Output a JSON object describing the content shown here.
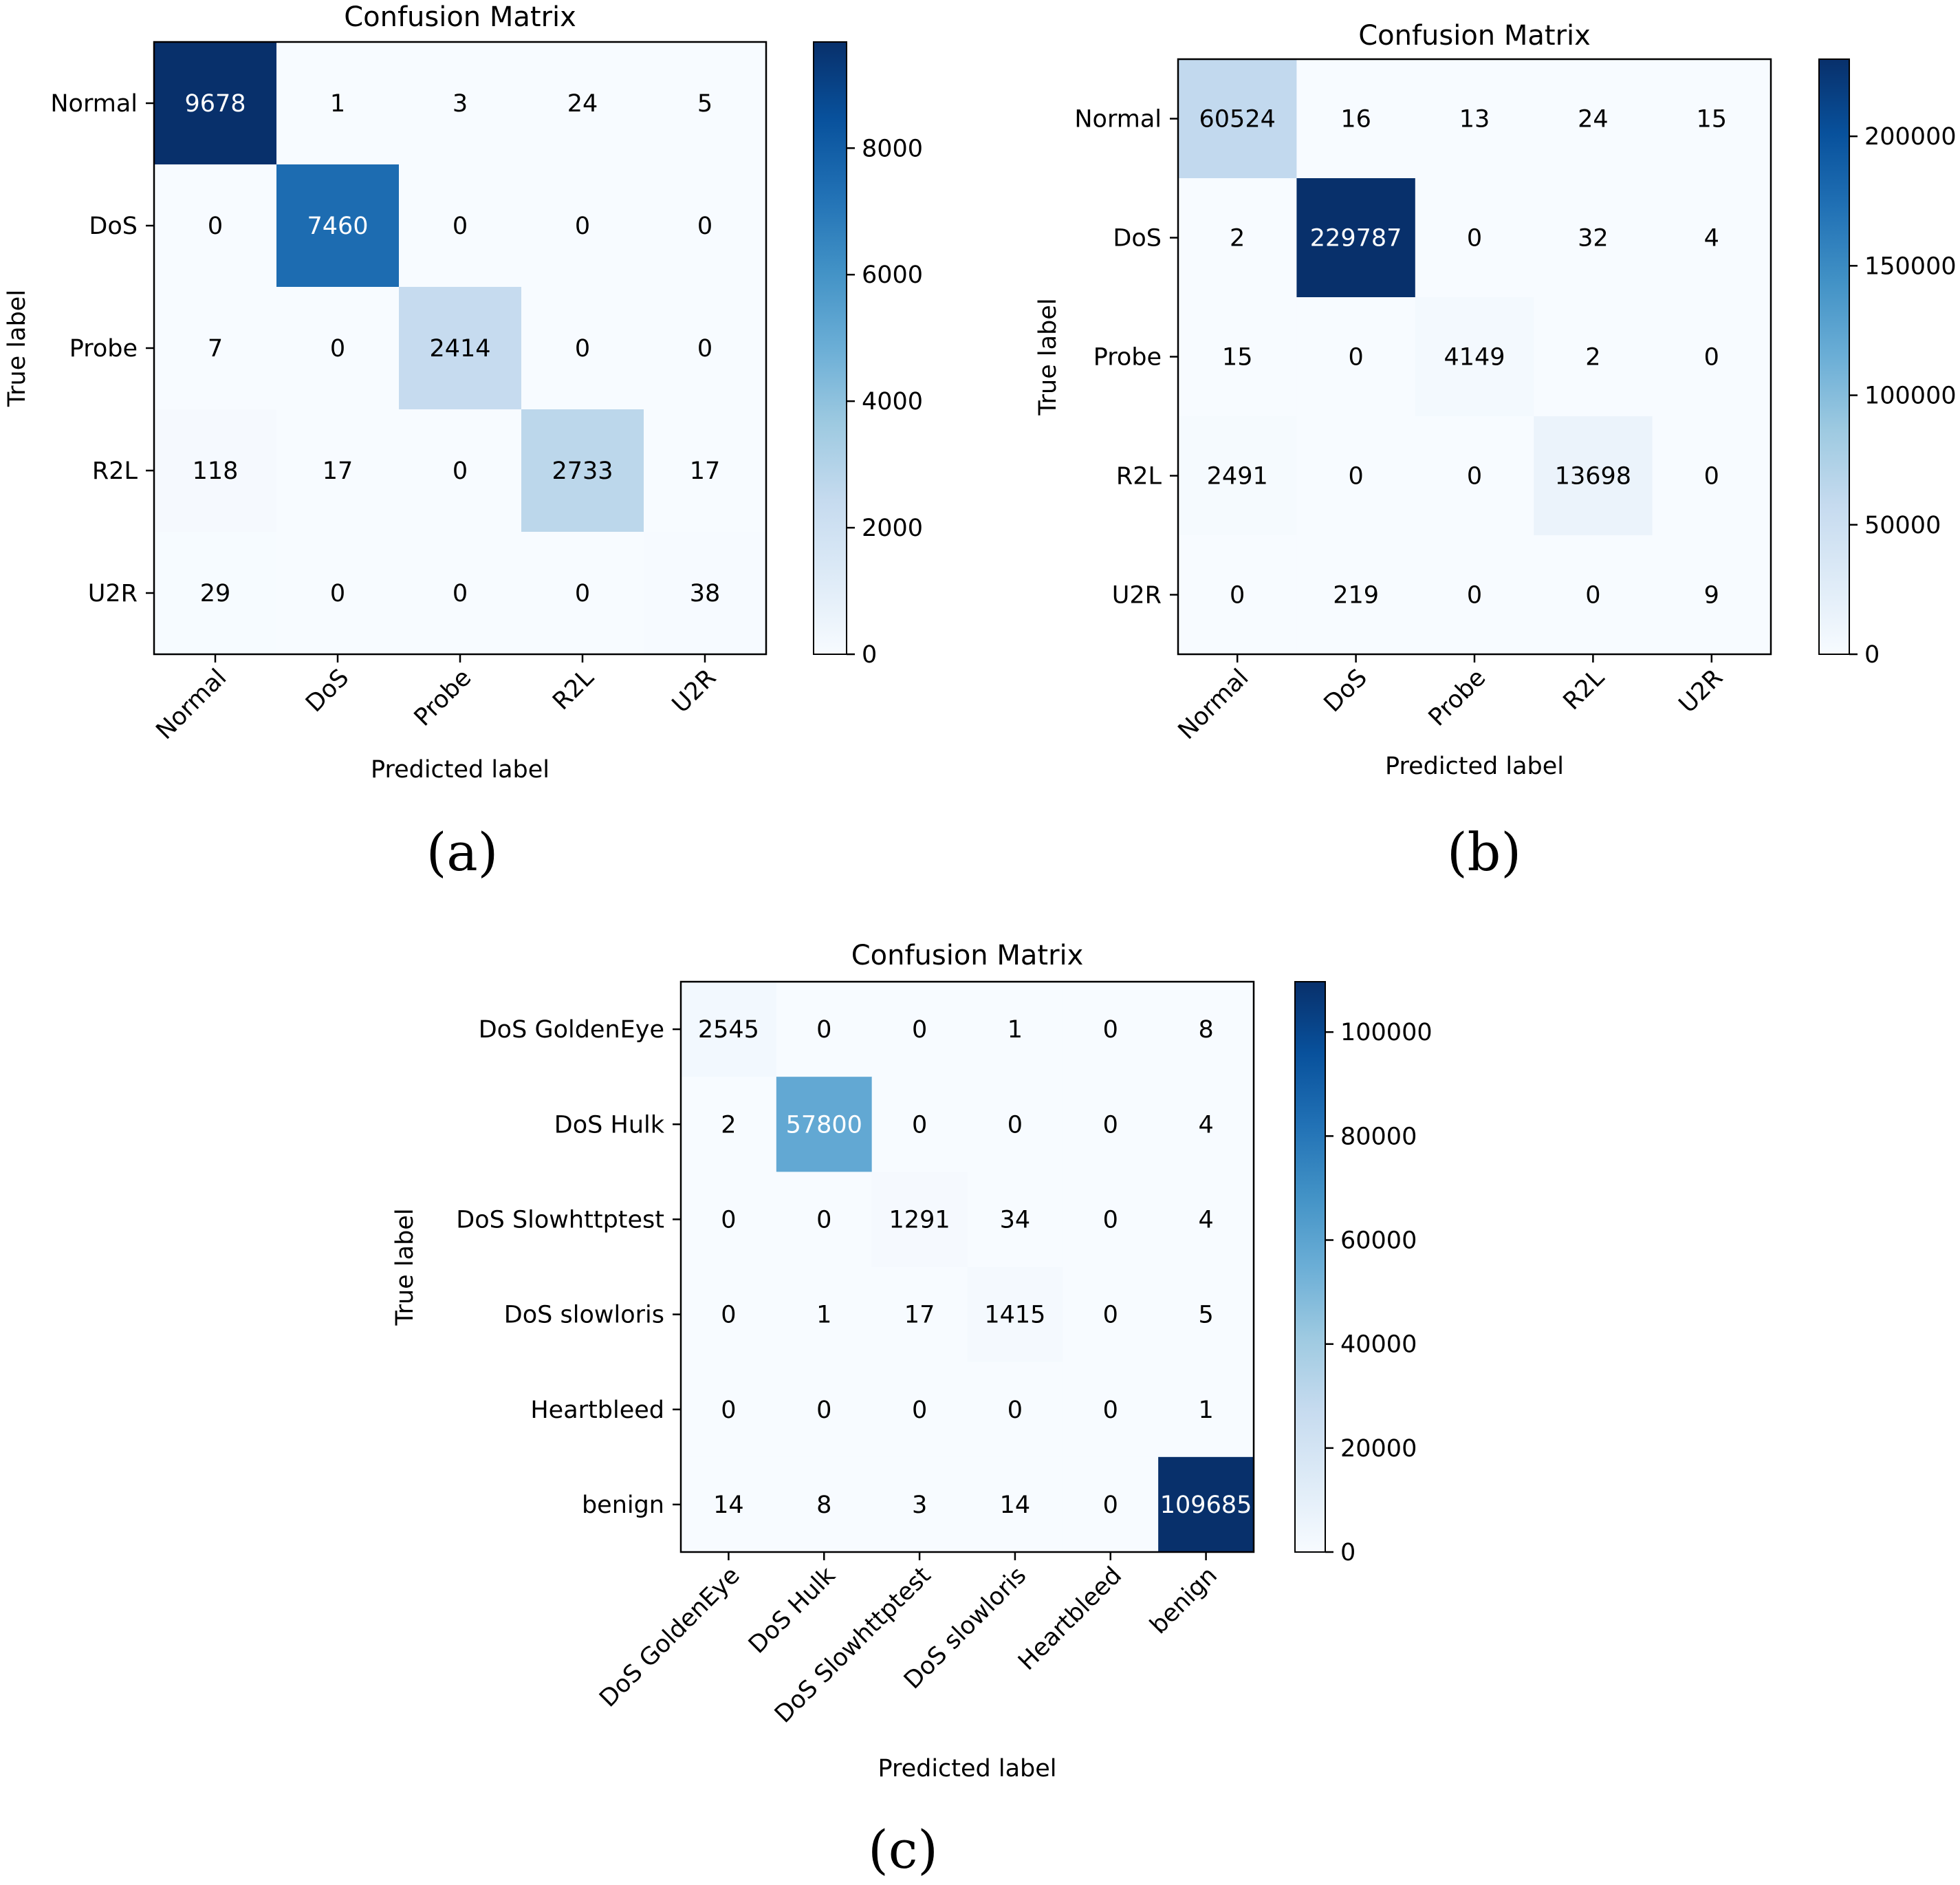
{
  "figure": {
    "panel_labels": [
      "(a)",
      "(b)",
      "(c)"
    ]
  },
  "colors": {
    "colormap": [
      "#f7fbff",
      "#deebf7",
      "#c6dbef",
      "#9ecae1",
      "#6baed6",
      "#4292c6",
      "#2171b5",
      "#08519c",
      "#08306b"
    ],
    "text_dark": "#000000",
    "text_light": "#ffffff"
  },
  "chart_data": [
    {
      "type": "heatmap",
      "title": "Confusion Matrix",
      "xlabel": "Predicted label",
      "ylabel": "True label",
      "row_labels": [
        "Normal",
        "DoS",
        "Probe",
        "R2L",
        "U2R"
      ],
      "col_labels": [
        "Normal",
        "DoS",
        "Probe",
        "R2L",
        "U2R"
      ],
      "values": [
        [
          9678,
          1,
          3,
          24,
          5
        ],
        [
          0,
          7460,
          0,
          0,
          0
        ],
        [
          7,
          0,
          2414,
          0,
          0
        ],
        [
          118,
          17,
          0,
          2733,
          17
        ],
        [
          29,
          0,
          0,
          0,
          38
        ]
      ],
      "vmin": 0,
      "vmax": 9678,
      "colorbar_ticks": [
        0,
        2000,
        4000,
        6000,
        8000
      ]
    },
    {
      "type": "heatmap",
      "title": "Confusion Matrix",
      "xlabel": "Predicted label",
      "ylabel": "True label",
      "row_labels": [
        "Normal",
        "DoS",
        "Probe",
        "R2L",
        "U2R"
      ],
      "col_labels": [
        "Normal",
        "DoS",
        "Probe",
        "R2L",
        "U2R"
      ],
      "values": [
        [
          60524,
          16,
          13,
          24,
          15
        ],
        [
          2,
          229787,
          0,
          32,
          4
        ],
        [
          15,
          0,
          4149,
          2,
          0
        ],
        [
          2491,
          0,
          0,
          13698,
          0
        ],
        [
          0,
          219,
          0,
          0,
          9
        ]
      ],
      "vmin": 0,
      "vmax": 229787,
      "colorbar_ticks": [
        0,
        50000,
        100000,
        150000,
        200000
      ]
    },
    {
      "type": "heatmap",
      "title": "Confusion Matrix",
      "xlabel": "Predicted label",
      "ylabel": "True label",
      "row_labels": [
        "DoS GoldenEye",
        "DoS Hulk",
        "DoS Slowhttptest",
        "DoS slowloris",
        "Heartbleed",
        "benign"
      ],
      "col_labels": [
        "DoS GoldenEye",
        "DoS Hulk",
        "DoS Slowhttptest",
        "DoS slowloris",
        "Heartbleed",
        "benign"
      ],
      "values": [
        [
          2545,
          0,
          0,
          1,
          0,
          8
        ],
        [
          2,
          57800,
          0,
          0,
          0,
          4
        ],
        [
          0,
          0,
          1291,
          34,
          0,
          4
        ],
        [
          0,
          1,
          17,
          1415,
          0,
          5
        ],
        [
          0,
          0,
          0,
          0,
          0,
          1
        ],
        [
          14,
          8,
          3,
          14,
          0,
          109685
        ]
      ],
      "vmin": 0,
      "vmax": 109685,
      "colorbar_ticks": [
        0,
        20000,
        40000,
        60000,
        80000,
        100000
      ]
    }
  ]
}
